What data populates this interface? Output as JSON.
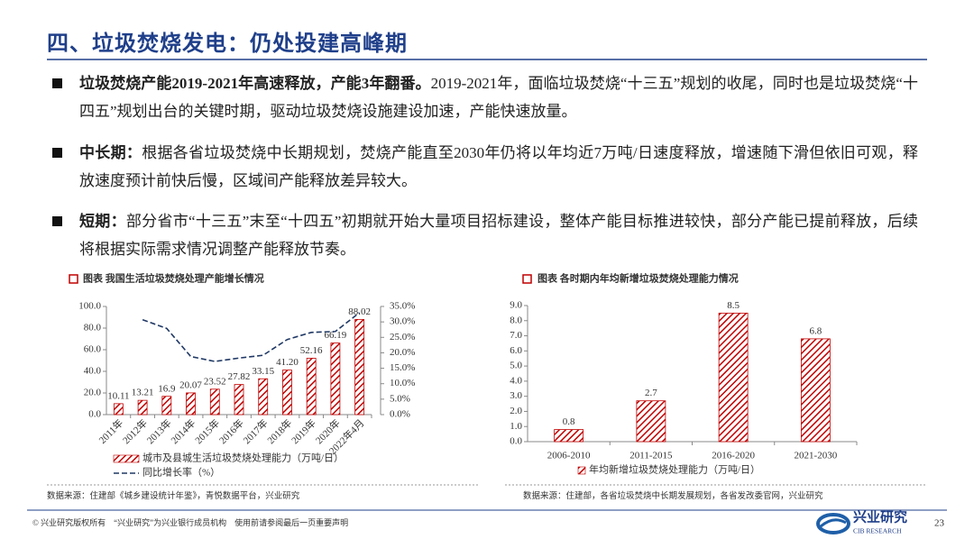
{
  "header": {
    "title": "四、垃圾焚烧发电：仍处投建高峰期"
  },
  "bullets": [
    {
      "bold": "垃圾焚烧产能2019-2021年高速释放，产能3年翻番。",
      "text": "2019-2021年，面临垃圾焚烧“十三五”规划的收尾，同时也是垃圾焚烧“十四五”规划出台的关键时期，驱动垃圾焚烧设施建设加速，产能快速放量。"
    },
    {
      "bold": "中长期：",
      "text": "根据各省垃圾焚烧中长期规划，焚烧产能直至2030年仍将以年均近7万吨/日速度释放，增速随下滑但依旧可观，释放速度预计前快后慢，区域间产能释放差异较大。"
    },
    {
      "bold": "短期：",
      "text": "部分省市“十三五”末至“十四五”初期就开始大量项目招标建设，整体产能目标推进较快，部分产能已提前释放，后续将根据实际需求情况调整产能释放节奏。"
    }
  ],
  "chart_data": [
    {
      "type": "bar",
      "title": "图表 我国生活垃圾焚烧处理产能增长情况",
      "categories": [
        "2011年",
        "2012年",
        "2013年",
        "2014年",
        "2015年",
        "2016年",
        "2017年",
        "2018年",
        "2019年",
        "2020年",
        "2022年4月"
      ],
      "series": [
        {
          "name": "城市及县城生活垃圾焚烧处理能力（万吨/日）",
          "color": "#c00000",
          "values": [
            10.11,
            13.21,
            16.9,
            20.07,
            23.52,
            27.82,
            33.15,
            41.2,
            52.16,
            66.19,
            88.02
          ],
          "value_labels": [
            "10.11",
            "13.21",
            "16.9",
            "20.07",
            "23.52",
            "27.82",
            "33.15",
            "41.20",
            "52.16",
            "66.19",
            "88.02"
          ]
        },
        {
          "name": "同比增长率（%）",
          "color": "#1f3864",
          "type": "line",
          "axis": "y2",
          "values": [
            null,
            30.7,
            27.9,
            18.8,
            17.2,
            18.3,
            19.2,
            24.3,
            26.6,
            26.9,
            33.0
          ]
        }
      ],
      "ylim": [
        0,
        100
      ],
      "yticks": [
        {
          "value": 0,
          "label": "0.0"
        },
        {
          "value": 20,
          "label": "20.0"
        },
        {
          "value": 40,
          "label": "40.0"
        },
        {
          "value": 60,
          "label": "60.0"
        },
        {
          "value": 80,
          "label": "80.0"
        },
        {
          "value": 100,
          "label": "100.0"
        }
      ],
      "y2lim": [
        0,
        35
      ],
      "y2ticks": [
        {
          "value": 0,
          "label": "0.0%"
        },
        {
          "value": 5,
          "label": "5.0%"
        },
        {
          "value": 10,
          "label": "10.0%"
        },
        {
          "value": 15,
          "label": "15.0%"
        },
        {
          "value": 20,
          "label": "20.0%"
        },
        {
          "value": 25,
          "label": "25.0%"
        },
        {
          "value": 30,
          "label": "30.0%"
        },
        {
          "value": 35,
          "label": "35.0%"
        }
      ],
      "grid": false
    },
    {
      "type": "bar",
      "title": "图表 各时期内年均新增垃圾焚烧处理能力情况",
      "categories": [
        "2006-2010",
        "2011-2015",
        "2016-2020",
        "2021-2030"
      ],
      "series": [
        {
          "name": "年均新增垃圾焚烧处理能力（万吨/日）",
          "color": "#c00000",
          "values": [
            0.8,
            2.7,
            8.5,
            6.8
          ]
        }
      ],
      "ylim": [
        0,
        9
      ],
      "yticks": [
        {
          "value": 0,
          "label": "0.0"
        },
        {
          "value": 1,
          "label": "1.0"
        },
        {
          "value": 2,
          "label": "2.0"
        },
        {
          "value": 3,
          "label": "3.0"
        },
        {
          "value": 4,
          "label": "4.0"
        },
        {
          "value": 5,
          "label": "5.0"
        },
        {
          "value": 6,
          "label": "6.0"
        },
        {
          "value": 7,
          "label": "7.0"
        },
        {
          "value": 8,
          "label": "8.0"
        },
        {
          "value": 9,
          "label": "9.0"
        }
      ],
      "grid": false
    }
  ],
  "sources": [
    "数据来源：住建部《城乡建设统计年鉴》，青悦数据平台，兴业研究",
    "数据来源：住建部，各省垃圾焚烧中长期发展规划，各省发改委官网，兴业研究"
  ],
  "footer": {
    "copyright": "© 兴业研究版权所有　“兴业研究”为兴业银行成员机构　使用前请参阅最后一页重要声明",
    "logo_cn": "兴业研究",
    "logo_en": "CIB RESEARCH",
    "page": "23"
  }
}
